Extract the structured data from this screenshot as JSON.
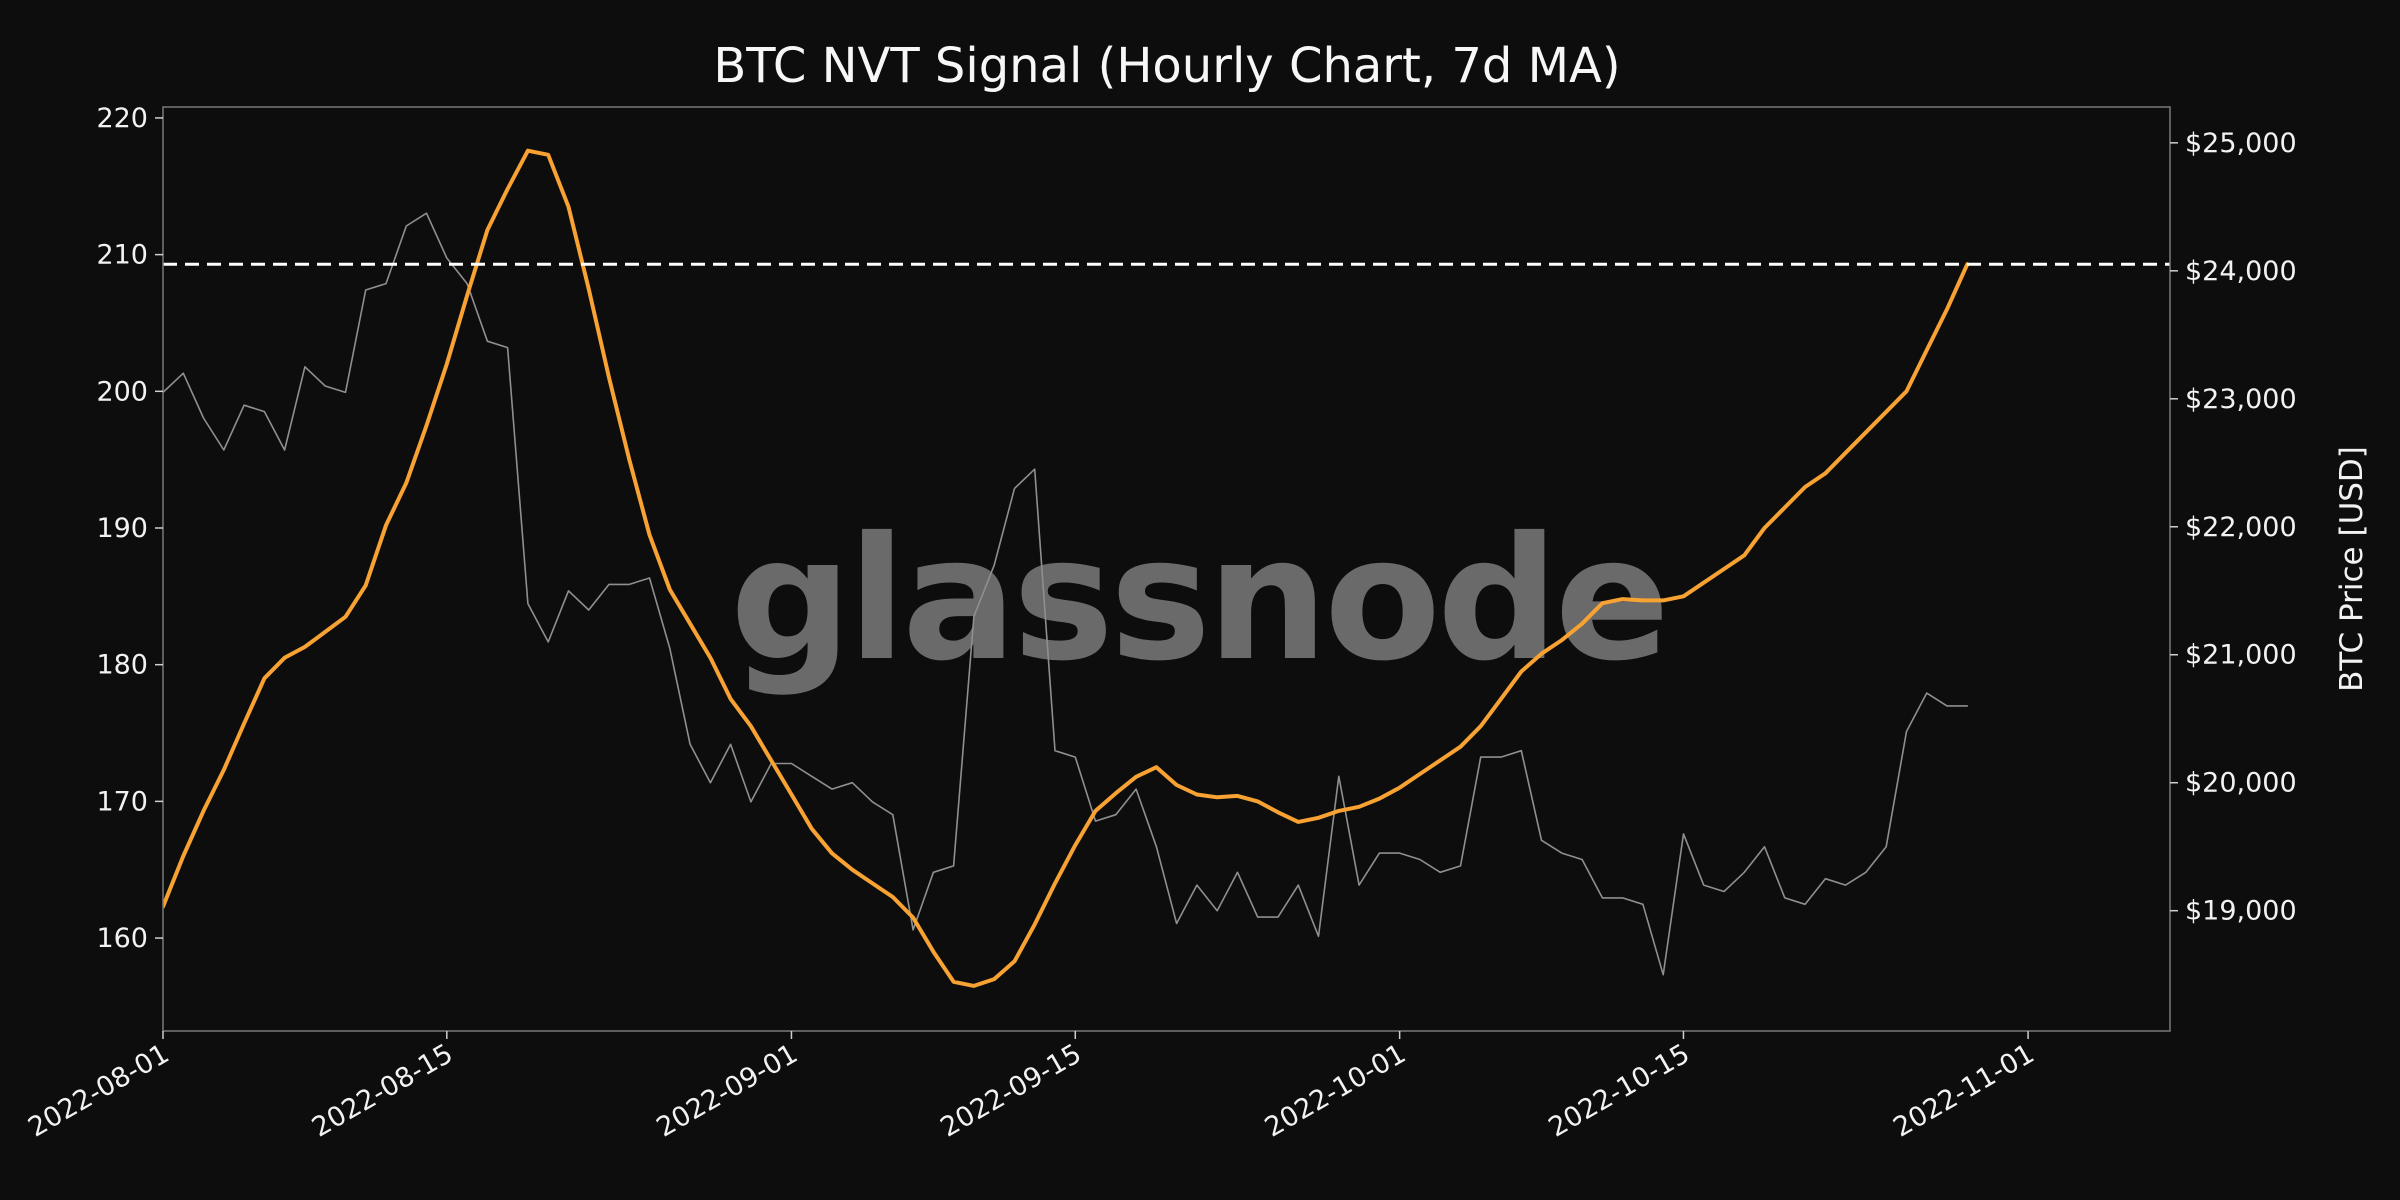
{
  "chart_data": {
    "type": "line",
    "title": "BTC NVT Signal (Hourly Chart, 7d MA)",
    "watermark": "glassnode",
    "colors": {
      "background": "#0d0d0d",
      "nvt": "#f7a232",
      "price": "#8f8f8f",
      "threshold": "#ffffff",
      "frame": "#7a7a7a"
    },
    "x_axis": {
      "ticks": [
        "2022-08-01",
        "2022-08-15",
        "2022-09-01",
        "2022-09-15",
        "2022-10-01",
        "2022-10-15",
        "2022-11-01"
      ],
      "xlim": [
        "2022-08-01",
        "2022-11-08"
      ]
    },
    "y_left": {
      "ticks": [
        "160",
        "170",
        "180",
        "190",
        "200",
        "210",
        "220"
      ],
      "ylim": [
        153.2,
        220.8
      ]
    },
    "y_right": {
      "label": "BTC Price [USD]",
      "ticks": [
        "$19,000",
        "$20,000",
        "$21,000",
        "$22,000",
        "$23,000",
        "$24,000",
        "$25,000"
      ],
      "ylim": [
        18060,
        25280
      ]
    },
    "reference_line": {
      "axis": "left",
      "value": 209.3,
      "style": "dashed"
    },
    "series": [
      {
        "axis": "left",
        "points": [
          [
            "2022-08-01",
            162.3
          ],
          [
            "2022-08-02",
            166.0
          ],
          [
            "2022-08-03",
            169.3
          ],
          [
            "2022-08-04",
            172.3
          ],
          [
            "2022-08-05",
            175.7
          ],
          [
            "2022-08-06",
            179.0
          ],
          [
            "2022-08-07",
            180.5
          ],
          [
            "2022-08-08",
            181.3
          ],
          [
            "2022-08-09",
            182.4
          ],
          [
            "2022-08-10",
            183.5
          ],
          [
            "2022-08-11",
            185.8
          ],
          [
            "2022-08-12",
            190.2
          ],
          [
            "2022-08-13",
            193.3
          ],
          [
            "2022-08-14",
            197.5
          ],
          [
            "2022-08-15",
            202.0
          ],
          [
            "2022-08-16",
            207.0
          ],
          [
            "2022-08-17",
            211.8
          ],
          [
            "2022-08-18",
            214.8
          ],
          [
            "2022-08-19",
            217.6
          ],
          [
            "2022-08-20",
            217.3
          ],
          [
            "2022-08-21",
            213.5
          ],
          [
            "2022-08-22",
            207.5
          ],
          [
            "2022-08-23",
            201.0
          ],
          [
            "2022-08-24",
            195.0
          ],
          [
            "2022-08-25",
            189.5
          ],
          [
            "2022-08-26",
            185.5
          ],
          [
            "2022-08-27",
            183.0
          ],
          [
            "2022-08-28",
            180.5
          ],
          [
            "2022-08-29",
            177.5
          ],
          [
            "2022-08-30",
            175.5
          ],
          [
            "2022-08-31",
            173.0
          ],
          [
            "2022-09-01",
            170.5
          ],
          [
            "2022-09-02",
            168.0
          ],
          [
            "2022-09-03",
            166.2
          ],
          [
            "2022-09-04",
            165.0
          ],
          [
            "2022-09-05",
            164.0
          ],
          [
            "2022-09-06",
            163.0
          ],
          [
            "2022-09-07",
            161.5
          ],
          [
            "2022-09-08",
            159.0
          ],
          [
            "2022-09-09",
            156.8
          ],
          [
            "2022-09-10",
            156.5
          ],
          [
            "2022-09-11",
            157.0
          ],
          [
            "2022-09-12",
            158.3
          ],
          [
            "2022-09-13",
            161.0
          ],
          [
            "2022-09-14",
            164.0
          ],
          [
            "2022-09-15",
            166.8
          ],
          [
            "2022-09-16",
            169.3
          ],
          [
            "2022-09-17",
            170.6
          ],
          [
            "2022-09-18",
            171.8
          ],
          [
            "2022-09-19",
            172.5
          ],
          [
            "2022-09-20",
            171.2
          ],
          [
            "2022-09-21",
            170.5
          ],
          [
            "2022-09-22",
            170.3
          ],
          [
            "2022-09-23",
            170.4
          ],
          [
            "2022-09-24",
            170.0
          ],
          [
            "2022-09-25",
            169.2
          ],
          [
            "2022-09-26",
            168.5
          ],
          [
            "2022-09-27",
            168.8
          ],
          [
            "2022-09-28",
            169.3
          ],
          [
            "2022-09-29",
            169.6
          ],
          [
            "2022-09-30",
            170.2
          ],
          [
            "2022-10-01",
            171.0
          ],
          [
            "2022-10-02",
            172.0
          ],
          [
            "2022-10-03",
            173.0
          ],
          [
            "2022-10-04",
            174.0
          ],
          [
            "2022-10-05",
            175.5
          ],
          [
            "2022-10-06",
            177.5
          ],
          [
            "2022-10-07",
            179.5
          ],
          [
            "2022-10-08",
            180.8
          ],
          [
            "2022-10-09",
            181.8
          ],
          [
            "2022-10-10",
            183.0
          ],
          [
            "2022-10-11",
            184.5
          ],
          [
            "2022-10-12",
            184.8
          ],
          [
            "2022-10-13",
            184.7
          ],
          [
            "2022-10-14",
            184.7
          ],
          [
            "2022-10-15",
            185.0
          ],
          [
            "2022-10-16",
            186.0
          ],
          [
            "2022-10-17",
            187.0
          ],
          [
            "2022-10-18",
            188.0
          ],
          [
            "2022-10-19",
            190.0
          ],
          [
            "2022-10-20",
            191.5
          ],
          [
            "2022-10-21",
            193.0
          ],
          [
            "2022-10-22",
            194.0
          ],
          [
            "2022-10-23",
            195.5
          ],
          [
            "2022-10-24",
            197.0
          ],
          [
            "2022-10-25",
            198.5
          ],
          [
            "2022-10-26",
            200.0
          ],
          [
            "2022-10-27",
            203.0
          ],
          [
            "2022-10-28",
            206.0
          ],
          [
            "2022-10-29",
            209.3
          ]
        ]
      },
      {
        "axis": "right",
        "points": [
          [
            "2022-08-01",
            23050
          ],
          [
            "2022-08-02",
            23200
          ],
          [
            "2022-08-03",
            22850
          ],
          [
            "2022-08-04",
            22600
          ],
          [
            "2022-08-05",
            22950
          ],
          [
            "2022-08-06",
            22900
          ],
          [
            "2022-08-07",
            22600
          ],
          [
            "2022-08-08",
            23250
          ],
          [
            "2022-08-09",
            23100
          ],
          [
            "2022-08-10",
            23050
          ],
          [
            "2022-08-11",
            23850
          ],
          [
            "2022-08-12",
            23900
          ],
          [
            "2022-08-13",
            24350
          ],
          [
            "2022-08-14",
            24450
          ],
          [
            "2022-08-15",
            24100
          ],
          [
            "2022-08-16",
            23900
          ],
          [
            "2022-08-17",
            23450
          ],
          [
            "2022-08-18",
            23400
          ],
          [
            "2022-08-19",
            21400
          ],
          [
            "2022-08-20",
            21100
          ],
          [
            "2022-08-21",
            21500
          ],
          [
            "2022-08-22",
            21350
          ],
          [
            "2022-08-23",
            21550
          ],
          [
            "2022-08-24",
            21550
          ],
          [
            "2022-08-25",
            21600
          ],
          [
            "2022-08-26",
            21050
          ],
          [
            "2022-08-27",
            20300
          ],
          [
            "2022-08-28",
            20000
          ],
          [
            "2022-08-29",
            20300
          ],
          [
            "2022-08-30",
            19850
          ],
          [
            "2022-08-31",
            20150
          ],
          [
            "2022-09-01",
            20150
          ],
          [
            "2022-09-02",
            20050
          ],
          [
            "2022-09-03",
            19950
          ],
          [
            "2022-09-04",
            20000
          ],
          [
            "2022-09-05",
            19850
          ],
          [
            "2022-09-06",
            19750
          ],
          [
            "2022-09-07",
            18850
          ],
          [
            "2022-09-08",
            19300
          ],
          [
            "2022-09-09",
            19350
          ],
          [
            "2022-09-10",
            21300
          ],
          [
            "2022-09-11",
            21700
          ],
          [
            "2022-09-12",
            22300
          ],
          [
            "2022-09-13",
            22450
          ],
          [
            "2022-09-14",
            20250
          ],
          [
            "2022-09-15",
            20200
          ],
          [
            "2022-09-16",
            19700
          ],
          [
            "2022-09-17",
            19750
          ],
          [
            "2022-09-18",
            19950
          ],
          [
            "2022-09-19",
            19500
          ],
          [
            "2022-09-20",
            18900
          ],
          [
            "2022-09-21",
            19200
          ],
          [
            "2022-09-22",
            19000
          ],
          [
            "2022-09-23",
            19300
          ],
          [
            "2022-09-24",
            18950
          ],
          [
            "2022-09-25",
            18950
          ],
          [
            "2022-09-26",
            19200
          ],
          [
            "2022-09-27",
            18800
          ],
          [
            "2022-09-28",
            20050
          ],
          [
            "2022-09-29",
            19200
          ],
          [
            "2022-09-30",
            19450
          ],
          [
            "2022-10-01",
            19450
          ],
          [
            "2022-10-02",
            19400
          ],
          [
            "2022-10-03",
            19300
          ],
          [
            "2022-10-04",
            19350
          ],
          [
            "2022-10-05",
            20200
          ],
          [
            "2022-10-06",
            20200
          ],
          [
            "2022-10-07",
            20250
          ],
          [
            "2022-10-08",
            19550
          ],
          [
            "2022-10-09",
            19450
          ],
          [
            "2022-10-10",
            19400
          ],
          [
            "2022-10-11",
            19100
          ],
          [
            "2022-10-12",
            19100
          ],
          [
            "2022-10-13",
            19050
          ],
          [
            "2022-10-14",
            18500
          ],
          [
            "2022-10-15",
            19600
          ],
          [
            "2022-10-16",
            19200
          ],
          [
            "2022-10-17",
            19150
          ],
          [
            "2022-10-18",
            19300
          ],
          [
            "2022-10-19",
            19500
          ],
          [
            "2022-10-20",
            19100
          ],
          [
            "2022-10-21",
            19050
          ],
          [
            "2022-10-22",
            19250
          ],
          [
            "2022-10-23",
            19200
          ],
          [
            "2022-10-24",
            19300
          ],
          [
            "2022-10-25",
            19500
          ],
          [
            "2022-10-26",
            20400
          ],
          [
            "2022-10-27",
            20700
          ],
          [
            "2022-10-28",
            20600
          ],
          [
            "2022-10-29",
            20600
          ]
        ]
      }
    ]
  }
}
